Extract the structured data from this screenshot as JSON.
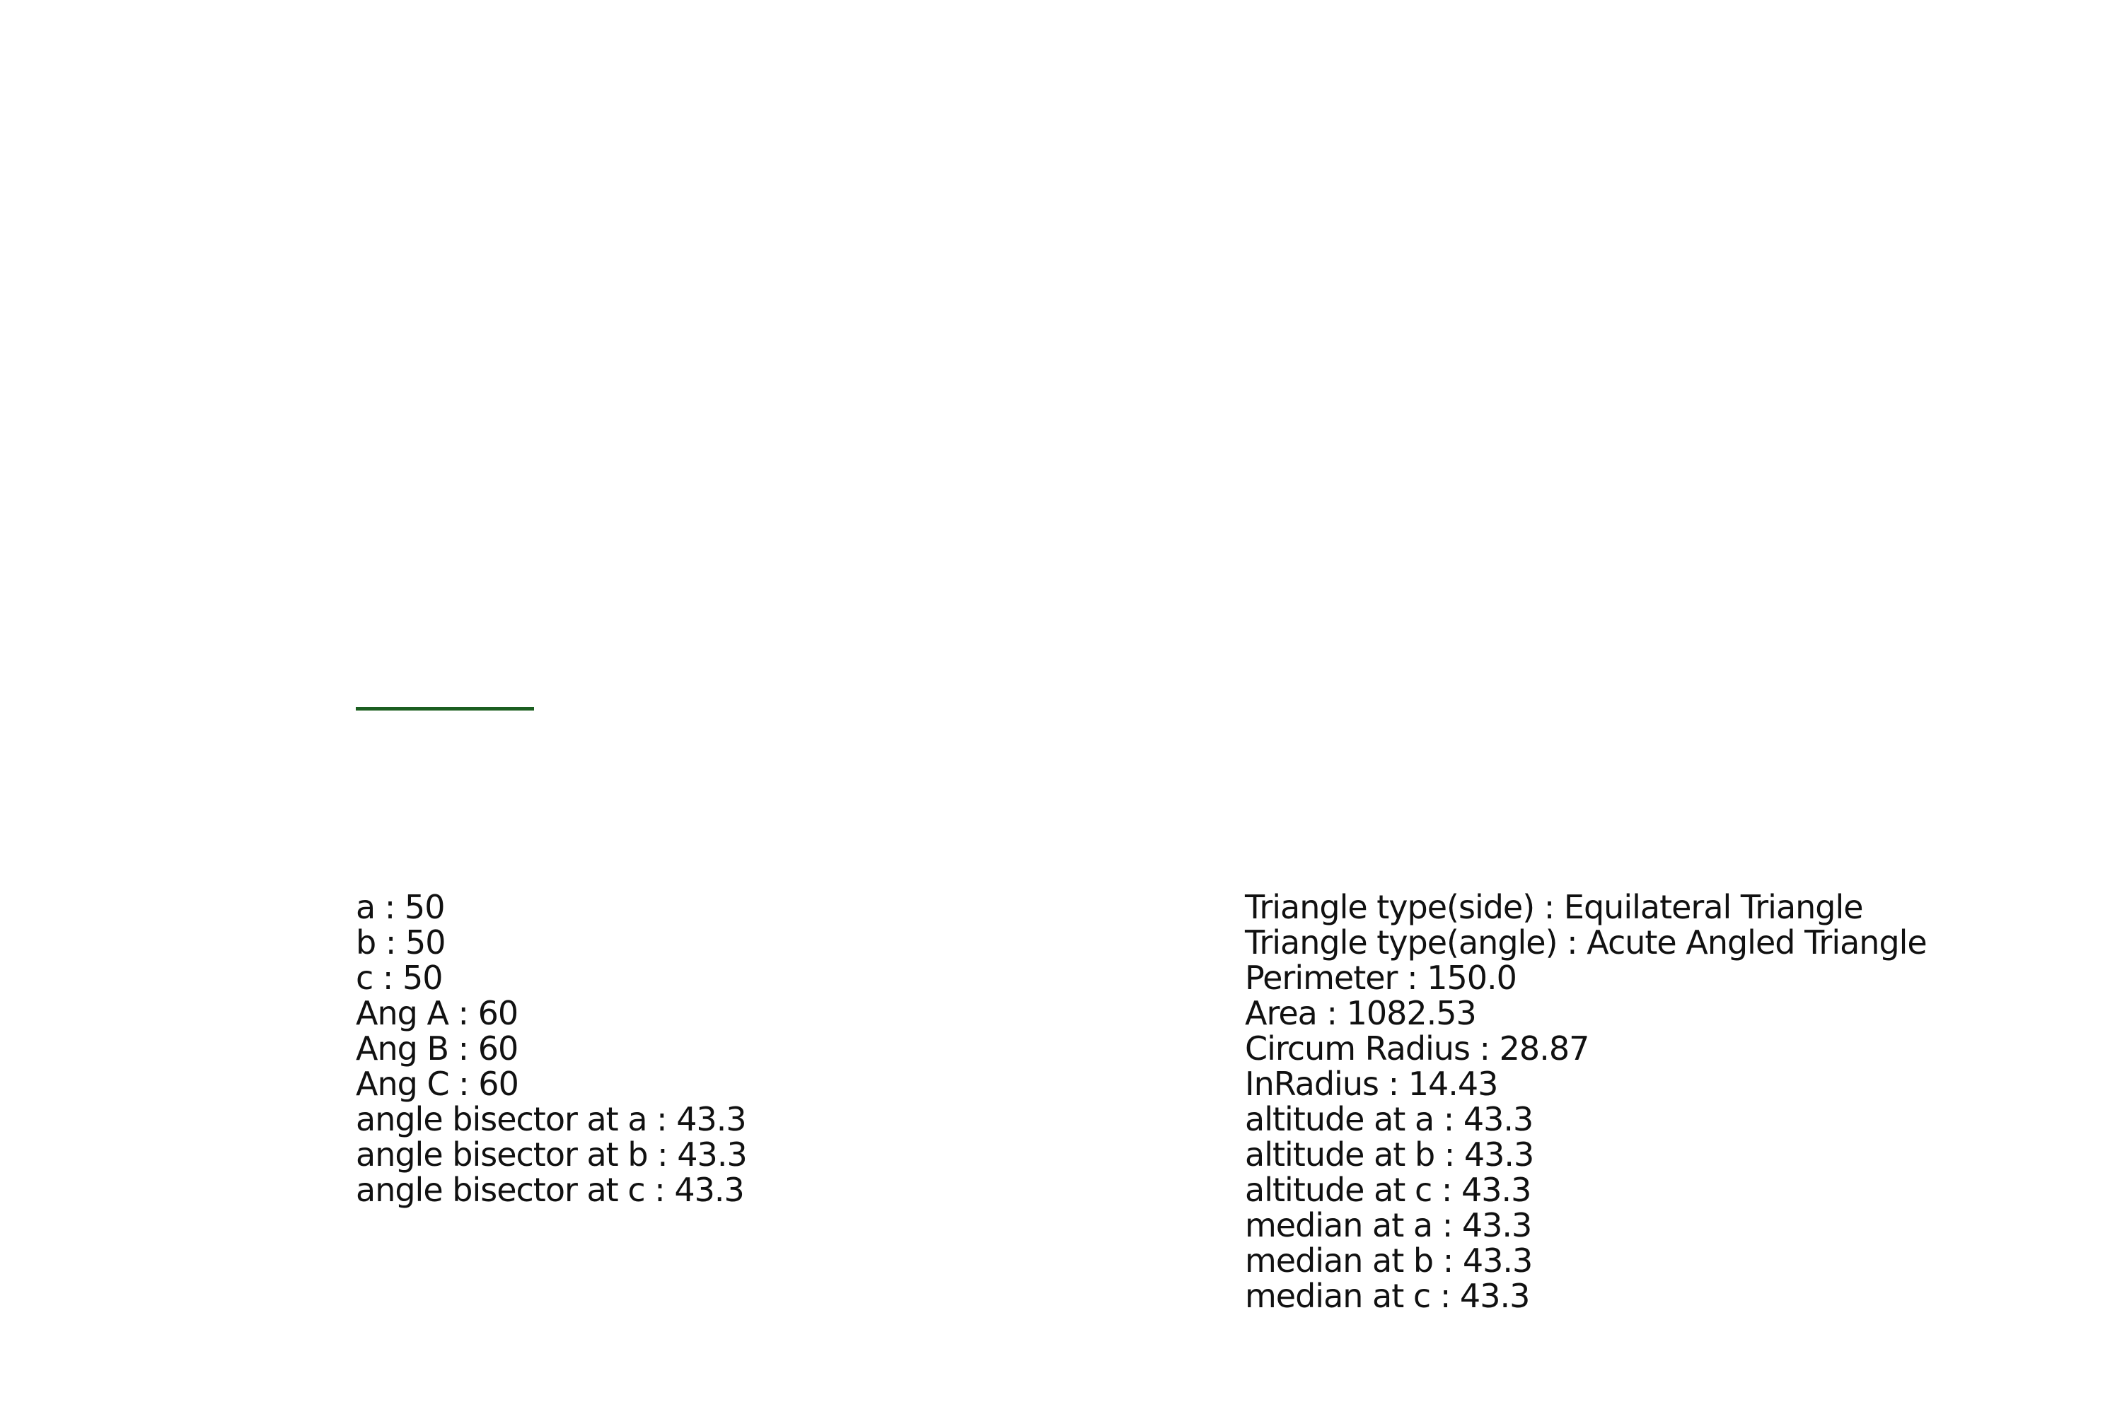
{
  "diagram": {
    "line_color": "#1b5e20"
  },
  "left_panel": {
    "items": [
      "a : 50",
      "b : 50",
      "c : 50",
      "Ang A : 60",
      "Ang B : 60",
      "Ang C : 60",
      "angle bisector at a : 43.3",
      "angle bisector at b : 43.3",
      "angle bisector at c : 43.3"
    ]
  },
  "right_panel": {
    "items": [
      "Triangle type(side) : Equilateral Triangle",
      "Triangle type(angle) : Acute Angled Triangle",
      "Perimeter : 150.0",
      "Area : 1082.53",
      "Circum Radius : 28.87",
      "InRadius : 14.43",
      "altitude at a : 43.3",
      "altitude at b : 43.3",
      "altitude at c : 43.3",
      "median at a : 43.3",
      "median at b : 43.3",
      "median at c : 43.3"
    ]
  }
}
